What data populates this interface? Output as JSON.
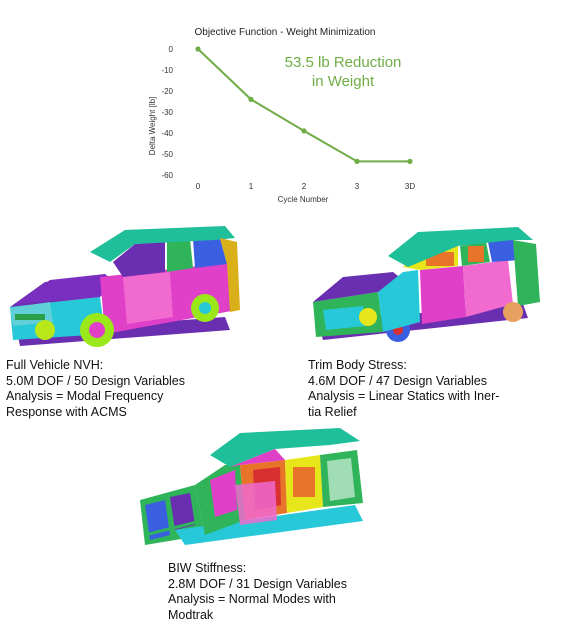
{
  "chart_data": {
    "type": "line",
    "title": "Objective Function - Weight Minimization",
    "xlabel": "Cycle Number",
    "ylabel": "Delta Weight [lb]",
    "categories": [
      "0",
      "1",
      "2",
      "3",
      "3D"
    ],
    "values": [
      0,
      -24,
      -39,
      -53.5,
      -53.5
    ],
    "ylim": [
      -60,
      0
    ],
    "yticks": [
      0,
      -10,
      -20,
      -30,
      -40,
      -50,
      -60
    ],
    "grid": false,
    "line_color": "#70ad47",
    "annotation": [
      "53.5 lb Reduction",
      "in Weight"
    ]
  },
  "captions": {
    "full_vehicle": [
      "Full Vehicle NVH:",
      "5.0M DOF  /  50 Design Variables",
      "Analysis = Modal Frequency",
      "Response with ACMS"
    ],
    "trim_body": [
      "Trim Body Stress:",
      "4.6M DOF  /  47 Design Variables",
      "Analysis = Linear Statics with Iner-",
      "tia Relief"
    ],
    "biw": [
      "BIW Stiffness:",
      "2.8M DOF  /  31 Design Variables",
      "Analysis = Normal Modes with",
      "Modtrak"
    ]
  },
  "colors": {
    "roof": "#1fbf9a",
    "magenta": "#e040c8",
    "pink": "#f06ad0",
    "purple": "#6a2fb0",
    "blue": "#3a5fe0",
    "cyan": "#27c9d8",
    "green": "#2fb45a",
    "yellow": "#e6e61a",
    "orange": "#e8742a",
    "red": "#d83030"
  }
}
